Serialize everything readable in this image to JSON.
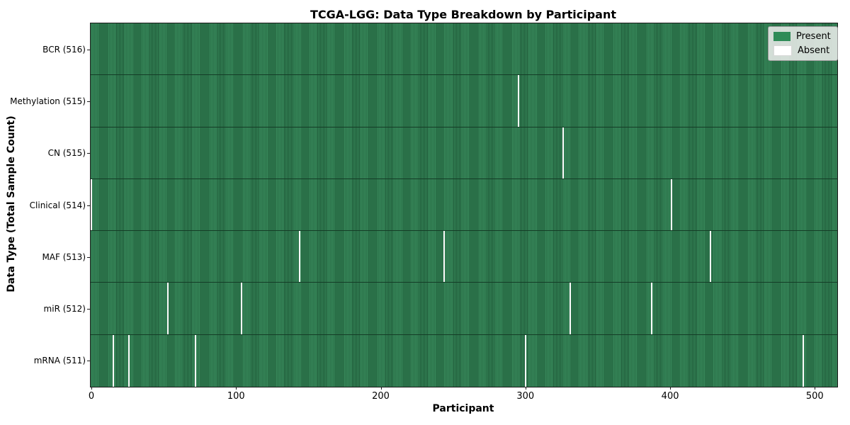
{
  "chart_data": {
    "type": "heatmap",
    "title": "TCGA-LGG: Data Type Breakdown by Participant",
    "xlabel": "Participant",
    "ylabel": "Data Type (Total Sample Count)",
    "x_ticks": [
      0,
      100,
      200,
      300,
      400,
      500
    ],
    "x_range": [
      0,
      515
    ],
    "n_participants": 516,
    "legend_position": "upper right",
    "legend": [
      {
        "label": "Present",
        "color": "#2e8b57"
      },
      {
        "label": "Absent",
        "color": "#ffffff"
      }
    ],
    "rows": [
      {
        "label": "BCR (516)",
        "total_samples": 516,
        "absent_participants": []
      },
      {
        "label": "Methylation (515)",
        "total_samples": 515,
        "absent_participants": [
          295
        ]
      },
      {
        "label": "CN (515)",
        "total_samples": 515,
        "absent_participants": [
          326
        ]
      },
      {
        "label": "Clinical (514)",
        "total_samples": 514,
        "absent_participants": [
          0,
          401
        ]
      },
      {
        "label": "MAF (513)",
        "total_samples": 513,
        "absent_participants": [
          144,
          244,
          428
        ]
      },
      {
        "label": "miR (512)",
        "total_samples": 512,
        "absent_participants": [
          53,
          104,
          331,
          387
        ]
      },
      {
        "label": "mRNA (511)",
        "total_samples": 511,
        "absent_participants": [
          15,
          26,
          72,
          300,
          492
        ]
      }
    ],
    "colors": {
      "present_fill": "#2e8b57",
      "present_fill_light": "#38895b",
      "bar_edge_dark": "#1d5736",
      "absent_fill": "#fdfdfd",
      "row_separator": "#143c26",
      "axis_line": "#1a1a1a"
    }
  }
}
